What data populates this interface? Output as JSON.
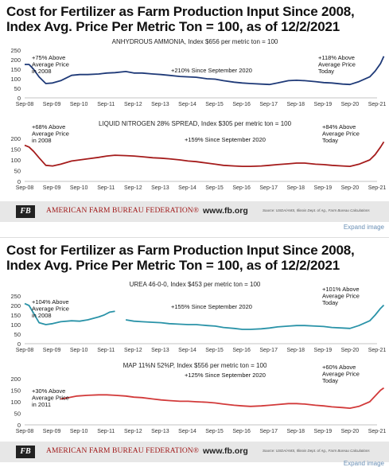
{
  "panels": [
    {
      "title_line1": "Cost for Fertilizer as Farm Production Input Since 2008,",
      "title_line2": "Index Avg. Price Per Metric Ton = 100, as of 12/2/2021",
      "footer": {
        "logo": "FB",
        "org": "AMERICAN FARM BUREAU FEDERATION®",
        "url": "www.fb.org",
        "source": "Source: USDA/AMS, Illinois Dept. of Ag., Farm Bureau Calculations"
      },
      "expand": "Expand image"
    },
    {
      "title_line1": "Cost for Fertilizer as Farm Production Input Since 2008,",
      "title_line2": "Index Avg. Price Per Metric Ton = 100, as of 12/2/2021",
      "footer": {
        "logo": "FB",
        "org": "AMERICAN FARM BUREAU FEDERATION®",
        "url": "www.fb.org",
        "source": "Source: USDA/AMS, Illinois Dept. of Ag., Farm Bureau Calculations"
      },
      "expand": "Expand image"
    }
  ],
  "colors": {
    "navy": "#1f3a78",
    "red": "#a51c1c",
    "teal": "#2a93a8",
    "coral": "#d23a3a"
  },
  "chart_data": [
    {
      "type": "line",
      "title": "ANHYDROUS AMMONIA, Index $656 per metric ton = 100",
      "color": "#1f3a78",
      "x_ticks": [
        "Sep-08",
        "Sep-09",
        "Sep-10",
        "Sep-11",
        "Sep-12",
        "Sep-13",
        "Sep-14",
        "Sep-15",
        "Sep-16",
        "Sep-17",
        "Sep-18",
        "Sep-19",
        "Sep-20",
        "Sep-21"
      ],
      "y_ticks": [
        0,
        50,
        100,
        150,
        200,
        250
      ],
      "ylim": [
        0,
        250
      ],
      "grid": false,
      "x": [
        2008.67,
        2008.83,
        2009.0,
        2009.2,
        2009.45,
        2009.7,
        2010.0,
        2010.4,
        2010.7,
        2011.0,
        2011.4,
        2011.7,
        2012.0,
        2012.4,
        2012.7,
        2013.0,
        2013.4,
        2013.7,
        2014.0,
        2014.4,
        2014.7,
        2015.0,
        2015.4,
        2015.7,
        2016.0,
        2016.4,
        2016.7,
        2017.0,
        2017.4,
        2017.7,
        2018.0,
        2018.4,
        2018.7,
        2019.0,
        2019.4,
        2019.7,
        2020.0,
        2020.4,
        2020.67,
        2021.0,
        2021.4,
        2021.6,
        2021.8,
        2021.92
      ],
      "y": [
        175,
        175,
        150,
        110,
        75,
        78,
        90,
        118,
        122,
        122,
        125,
        130,
        132,
        138,
        130,
        130,
        125,
        122,
        118,
        112,
        110,
        108,
        100,
        98,
        90,
        82,
        78,
        75,
        72,
        70,
        78,
        90,
        92,
        90,
        85,
        80,
        78,
        72,
        70,
        85,
        110,
        140,
        180,
        218
      ],
      "annotations": [
        "+75% Above Average Price in 2008",
        "+210% Since September 2020",
        "+118% Above Average Price Today"
      ]
    },
    {
      "type": "line",
      "title": "LIQUID NITROGEN 28% SPREAD, Index $305 per metric ton = 100",
      "color": "#a51c1c",
      "x_ticks": [
        "Sep-08",
        "Sep-09",
        "Sep-10",
        "Sep-11",
        "Sep-12",
        "Sep-13",
        "Sep-14",
        "Sep-15",
        "Sep-16",
        "Sep-17",
        "Sep-18",
        "Sep-19",
        "Sep-20",
        "Sep-21"
      ],
      "y_ticks": [
        0,
        50,
        100,
        150,
        200
      ],
      "ylim": [
        0,
        200
      ],
      "grid": false,
      "x": [
        2008.67,
        2008.83,
        2009.0,
        2009.2,
        2009.45,
        2009.7,
        2010.0,
        2010.4,
        2010.7,
        2011.0,
        2011.4,
        2011.7,
        2012.0,
        2012.4,
        2012.7,
        2013.0,
        2013.4,
        2013.7,
        2014.0,
        2014.4,
        2014.7,
        2015.0,
        2015.4,
        2015.7,
        2016.0,
        2016.4,
        2016.7,
        2017.0,
        2017.4,
        2017.7,
        2018.0,
        2018.4,
        2018.7,
        2019.0,
        2019.4,
        2019.7,
        2020.0,
        2020.4,
        2020.67,
        2021.0,
        2021.4,
        2021.6,
        2021.8,
        2021.92
      ],
      "y": [
        168,
        160,
        140,
        110,
        75,
        72,
        80,
        95,
        100,
        105,
        112,
        118,
        122,
        120,
        118,
        115,
        110,
        108,
        105,
        100,
        95,
        92,
        85,
        80,
        75,
        72,
        70,
        70,
        72,
        75,
        78,
        82,
        85,
        85,
        80,
        78,
        75,
        72,
        70,
        80,
        100,
        125,
        160,
        184
      ],
      "annotations": [
        "+68% Above Average Price in 2008",
        "+159% Since September 2020",
        "+84% Above Average Price Today"
      ]
    },
    {
      "type": "line",
      "title": "UREA 46-0-0, Index $453 per metric ton = 100",
      "color": "#2a93a8",
      "x_ticks": [
        "Sep-08",
        "Sep-09",
        "Sep-10",
        "Sep-11",
        "Sep-12",
        "Sep-13",
        "Sep-14",
        "Sep-15",
        "Sep-16",
        "Sep-17",
        "Sep-18",
        "Sep-19",
        "Sep-20",
        "Sep-21"
      ],
      "y_ticks": [
        0,
        50,
        100,
        150,
        200,
        250
      ],
      "ylim": [
        0,
        250
      ],
      "grid": false,
      "x": [
        2008.67,
        2008.83,
        2009.0,
        2009.2,
        2009.45,
        2009.7,
        2010.0,
        2010.4,
        2010.7,
        2011.0,
        2011.4,
        2011.6,
        2011.8,
        2012.0,
        null,
        2012.4,
        2012.7,
        2013.0,
        2013.4,
        2013.7,
        2014.0,
        2014.4,
        2014.7,
        2015.0,
        2015.4,
        2015.7,
        2016.0,
        2016.4,
        2016.7,
        2017.0,
        2017.4,
        2017.7,
        2018.0,
        2018.4,
        2018.7,
        2019.0,
        2019.4,
        2019.7,
        2020.0,
        2020.4,
        2020.67,
        2021.0,
        2021.4,
        2021.6,
        2021.8,
        2021.92
      ],
      "y": [
        210,
        200,
        160,
        110,
        100,
        105,
        115,
        120,
        118,
        125,
        140,
        150,
        165,
        170,
        null,
        125,
        118,
        115,
        112,
        110,
        105,
        102,
        100,
        100,
        95,
        92,
        85,
        80,
        75,
        75,
        78,
        82,
        88,
        92,
        95,
        95,
        92,
        90,
        85,
        82,
        80,
        95,
        120,
        150,
        185,
        202
      ],
      "annotations": [
        "+104% Above Average Price in 2008",
        "+155% Since September 2020",
        "+101% Above Average Price Today"
      ]
    },
    {
      "type": "line",
      "title": "MAP 11%N 52%P, Index $556 per metric ton = 100",
      "color": "#d23a3a",
      "x_ticks": [
        "Sep-08",
        "Sep-09",
        "Sep-10",
        "Sep-11",
        "Sep-12",
        "Sep-13",
        "Sep-14",
        "Sep-15",
        "Sep-16",
        "Sep-17",
        "Sep-18",
        "Sep-19",
        "Sep-20",
        "Sep-21"
      ],
      "y_ticks": [
        0,
        50,
        100,
        150,
        200
      ],
      "ylim": [
        0,
        200
      ],
      "grid": false,
      "x": [
        2010.0,
        2010.3,
        2010.6,
        2011.0,
        2011.4,
        2011.7,
        2012.0,
        2012.4,
        2012.7,
        2013.0,
        2013.4,
        2013.7,
        2014.0,
        2014.4,
        2014.7,
        2015.0,
        2015.4,
        2015.7,
        2016.0,
        2016.4,
        2016.7,
        2017.0,
        2017.4,
        2017.7,
        2018.0,
        2018.4,
        2018.7,
        2019.0,
        2019.4,
        2019.7,
        2020.0,
        2020.4,
        2020.67,
        2021.0,
        2021.4,
        2021.6,
        2021.8,
        2021.92
      ],
      "y": [
        112,
        118,
        125,
        128,
        130,
        130,
        128,
        125,
        120,
        118,
        112,
        108,
        105,
        102,
        102,
        100,
        98,
        95,
        90,
        85,
        82,
        80,
        82,
        85,
        88,
        92,
        92,
        90,
        85,
        82,
        78,
        75,
        72,
        80,
        100,
        125,
        150,
        160
      ],
      "annotations": [
        "+30% Above Average Price in 2011",
        "+125% Since September 2020",
        "+60% Above Average Price Today"
      ]
    }
  ]
}
